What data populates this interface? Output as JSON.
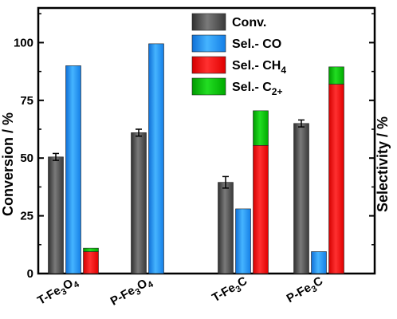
{
  "chart_data": {
    "type": "bar",
    "categories": [
      {
        "label": "T-Fe3O4",
        "base": "T-Fe",
        "sub": "3",
        "mid": "O",
        "sub2": "4"
      },
      {
        "label": "P-Fe3O4",
        "base": "P-Fe",
        "sub": "3",
        "mid": "O",
        "sub2": "4"
      },
      {
        "label": "T-Fe3C",
        "base": "T-Fe",
        "sub": "3",
        "mid": "C",
        "sub2": ""
      },
      {
        "label": "P-Fe3C",
        "base": "P-Fe",
        "sub": "3",
        "mid": "C",
        "sub2": ""
      }
    ],
    "ylabel_left": "Conversion / %",
    "ylabel_right": "Selectivity / %",
    "ylim": [
      0,
      115
    ],
    "yticks": [
      0,
      25,
      50,
      75,
      100
    ],
    "legend_position": "top-center",
    "series": [
      {
        "name": "Conv.",
        "key": "conv",
        "color": "#4d4d4d",
        "values": [
          50.5,
          61,
          39.5,
          65
        ],
        "errors": [
          1.5,
          1.5,
          2.5,
          1.5
        ]
      },
      {
        "name": "Sel.- CO",
        "key": "co",
        "color": "#1e90ff",
        "values": [
          90,
          99.5,
          28,
          9.5
        ]
      },
      {
        "name": "Sel.- CH4",
        "key": "ch4",
        "color": "#ff0000",
        "values": [
          9.5,
          0,
          55.5,
          82
        ]
      },
      {
        "name": "Sel.- C2+",
        "key": "c2",
        "color": "#00bb00",
        "values": [
          1.5,
          0,
          15,
          7.5
        ]
      }
    ],
    "legend": [
      {
        "label": "Conv.",
        "base": "Conv.",
        "sub": ""
      },
      {
        "label": "Sel.- CO",
        "base": "Sel.- CO",
        "sub": ""
      },
      {
        "label": "Sel.- CH4",
        "base": "Sel.- CH",
        "sub": "4"
      },
      {
        "label": "Sel.- C2+",
        "base": "Sel.- C",
        "sub": "2+"
      }
    ]
  }
}
